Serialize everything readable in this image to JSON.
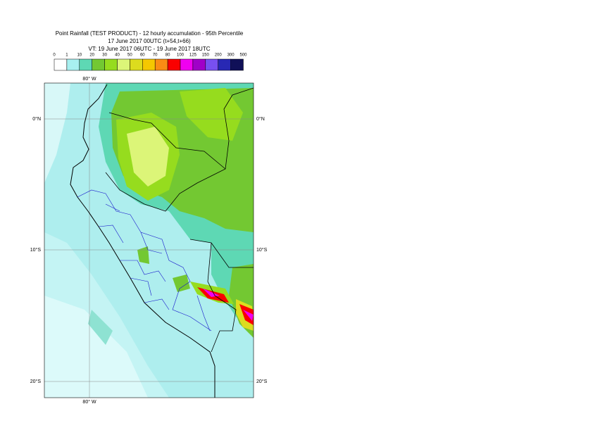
{
  "title": {
    "line1": "Point Rainfall (TEST PRODUCT) - 12 hourly accumulation - 95th Percentile",
    "line2": "17 June 2017 00UTC (t+54,t+66)",
    "line3": "VT: 19 June 2017 06UTC - 19 June 2017 18UTC"
  },
  "legend": {
    "thresholds": [
      0,
      1,
      10,
      20,
      30,
      40,
      50,
      60,
      70,
      80,
      100,
      125,
      150,
      200,
      300,
      500
    ],
    "colors": [
      "#ffffff",
      "#a8f0f0",
      "#5ed8b4",
      "#73c832",
      "#96dc1e",
      "#dcf578",
      "#dcdc1e",
      "#f5c800",
      "#fa8c14",
      "#fa0000",
      "#f000f0",
      "#a000c8",
      "#7850f0",
      "#2828b4",
      "#101058"
    ]
  },
  "map": {
    "longitude_label": "80° W",
    "latitude_labels": [
      "0°N",
      "10°S",
      "20°S"
    ]
  }
}
